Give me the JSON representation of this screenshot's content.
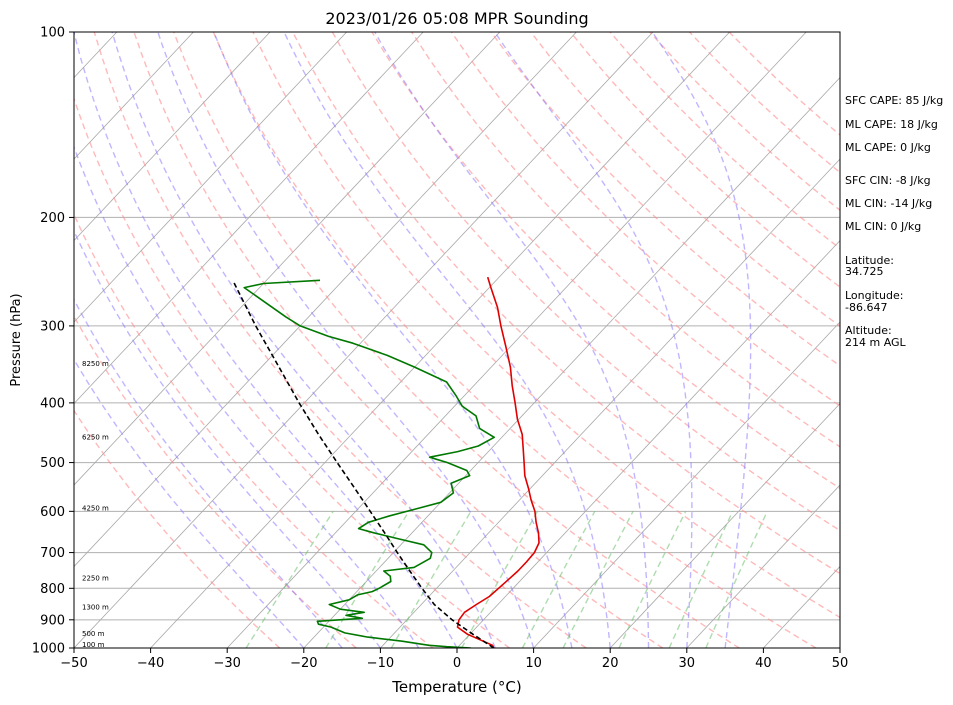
{
  "chart_data": {
    "type": "skewt",
    "title": "2023/01/26 05:08 MPR Sounding",
    "xlabel": "Temperature (°C)",
    "ylabel": "Pressure (hPa)",
    "xlim": [
      -50,
      50
    ],
    "ylim": [
      1000,
      100
    ],
    "x_ticks": [
      -50,
      -40,
      -30,
      -20,
      -10,
      0,
      10,
      20,
      30,
      40,
      50
    ],
    "x_tick_labels": [
      "−50",
      "−40",
      "−30",
      "−20",
      "−10",
      "0",
      "10",
      "20",
      "30",
      "40",
      "50"
    ],
    "y_ticks": [
      1000,
      900,
      800,
      700,
      600,
      500,
      400,
      300,
      200,
      100
    ],
    "y_tick_labels": [
      "1000",
      "900",
      "800",
      "700",
      "600",
      "500",
      "400",
      "300",
      "200",
      "100"
    ],
    "grid": true,
    "height_labels": [
      {
        "p": 1000,
        "label": "100 m"
      },
      {
        "p": 960,
        "label": "500 m"
      },
      {
        "p": 870,
        "label": "1300 m"
      },
      {
        "p": 780,
        "label": "2250 m"
      },
      {
        "p": 600,
        "label": "4250 m"
      },
      {
        "p": 460,
        "label": "6250 m"
      },
      {
        "p": 350,
        "label": "8250 m"
      }
    ],
    "series": [
      {
        "role": "temperature",
        "color": "#e00000",
        "points": [
          [
            1000,
            4.8
          ],
          [
            990,
            4.3
          ],
          [
            975,
            2.6
          ],
          [
            950,
            -0.3
          ],
          [
            925,
            -2.5
          ],
          [
            900,
            -3.2
          ],
          [
            875,
            -3.4
          ],
          [
            850,
            -2.8
          ],
          [
            825,
            -2.1
          ],
          [
            800,
            -1.9
          ],
          [
            775,
            -1.7
          ],
          [
            750,
            -1.5
          ],
          [
            725,
            -1.5
          ],
          [
            700,
            -1.6
          ],
          [
            675,
            -2.2
          ],
          [
            650,
            -3.5
          ],
          [
            625,
            -5.1
          ],
          [
            600,
            -6.6
          ],
          [
            575,
            -8.5
          ],
          [
            550,
            -10.3
          ],
          [
            525,
            -12.3
          ],
          [
            500,
            -14.0
          ],
          [
            475,
            -15.8
          ],
          [
            450,
            -17.7
          ],
          [
            425,
            -20.2
          ],
          [
            400,
            -22.5
          ],
          [
            375,
            -25.0
          ],
          [
            350,
            -27.5
          ],
          [
            325,
            -30.5
          ],
          [
            300,
            -33.8
          ],
          [
            280,
            -36.5
          ],
          [
            260,
            -39.8
          ],
          [
            250,
            -41.5
          ]
        ]
      },
      {
        "role": "dewpoint",
        "color": "#007800",
        "points": [
          [
            1000,
            1.8
          ],
          [
            995,
            -1.5
          ],
          [
            990,
            -4.0
          ],
          [
            975,
            -8.0
          ],
          [
            960,
            -13.0
          ],
          [
            945,
            -16.5
          ],
          [
            925,
            -19.0
          ],
          [
            915,
            -21.0
          ],
          [
            905,
            -21.5
          ],
          [
            895,
            -16.0
          ],
          [
            885,
            -18.5
          ],
          [
            875,
            -16.5
          ],
          [
            865,
            -20.0
          ],
          [
            850,
            -22.0
          ],
          [
            835,
            -20.0
          ],
          [
            820,
            -19.5
          ],
          [
            810,
            -18.0
          ],
          [
            800,
            -17.5
          ],
          [
            780,
            -16.8
          ],
          [
            765,
            -17.5
          ],
          [
            750,
            -19.0
          ],
          [
            740,
            -15.5
          ],
          [
            715,
            -14.5
          ],
          [
            700,
            -15.0
          ],
          [
            680,
            -17.0
          ],
          [
            665,
            -21.0
          ],
          [
            650,
            -25.0
          ],
          [
            640,
            -27.5
          ],
          [
            625,
            -27.0
          ],
          [
            610,
            -25.0
          ],
          [
            595,
            -22.5
          ],
          [
            580,
            -20.0
          ],
          [
            560,
            -19.5
          ],
          [
            540,
            -21.0
          ],
          [
            525,
            -19.5
          ],
          [
            515,
            -20.5
          ],
          [
            500,
            -24.0
          ],
          [
            490,
            -27.0
          ],
          [
            480,
            -24.0
          ],
          [
            470,
            -22.0
          ],
          [
            455,
            -21.0
          ],
          [
            440,
            -24.0
          ],
          [
            420,
            -26.0
          ],
          [
            405,
            -29.0
          ],
          [
            390,
            -31.0
          ],
          [
            370,
            -34.0
          ],
          [
            350,
            -40.0
          ],
          [
            335,
            -45.0
          ],
          [
            320,
            -51.0
          ],
          [
            312,
            -55.0
          ],
          [
            300,
            -60.0
          ],
          [
            290,
            -63.0
          ],
          [
            260,
            -72.0
          ],
          [
            256,
            -70.0
          ],
          [
            253,
            -63.0
          ]
        ]
      },
      {
        "role": "parcel",
        "color": "#000000",
        "style": "dashed",
        "points": [
          [
            1000,
            4.8
          ],
          [
            950,
            0.4
          ],
          [
            900,
            -4.1
          ],
          [
            850,
            -8.3
          ],
          [
            800,
            -11.9
          ],
          [
            750,
            -15.6
          ],
          [
            700,
            -19.5
          ],
          [
            650,
            -23.6
          ],
          [
            600,
            -28.1
          ],
          [
            550,
            -33.0
          ],
          [
            500,
            -38.4
          ],
          [
            450,
            -44.3
          ],
          [
            400,
            -50.7
          ],
          [
            350,
            -57.7
          ],
          [
            300,
            -65.8
          ],
          [
            255,
            -74.0
          ]
        ]
      }
    ],
    "dry_adiabats_K": [
      250,
      260,
      270,
      280,
      290,
      300,
      310,
      320,
      330,
      340,
      350,
      360,
      370,
      380,
      390,
      400,
      410,
      420,
      430,
      440,
      450
    ],
    "moist_adiabats_C": [
      -20,
      -15,
      -10,
      -5,
      0,
      5,
      10,
      15,
      20,
      25,
      30,
      35
    ],
    "mixing_ratio_lines_gkg": [
      0.4,
      1,
      2,
      4,
      7,
      10,
      16,
      24,
      32
    ]
  },
  "sidebar": {
    "sfc_cape": "SFC CAPE: 85 J/kg",
    "ml_cape_1": "ML CAPE: 18 J/kg",
    "ml_cape_2": "ML CAPE: 0 J/kg",
    "sfc_cin": "SFC CIN: -8 J/kg",
    "ml_cin_1": "ML CIN: -14 J/kg",
    "ml_cin_2": "ML CIN: 0 J/kg",
    "latitude_label": "Latitude:",
    "latitude_value": "34.725",
    "longitude_label": "Longitude:",
    "longitude_value": "-86.647",
    "altitude_label": "Altitude:",
    "altitude_value": "214 m AGL"
  },
  "colors": {
    "temperature": "#e00000",
    "dewpoint": "#007800",
    "parcel": "#000000",
    "dry_adiabat": "#ff8a8a",
    "moist_adiabat": "#8a7aff",
    "mixing_ratio": "#6cc06c",
    "isotherm": "#9a9a9a"
  }
}
